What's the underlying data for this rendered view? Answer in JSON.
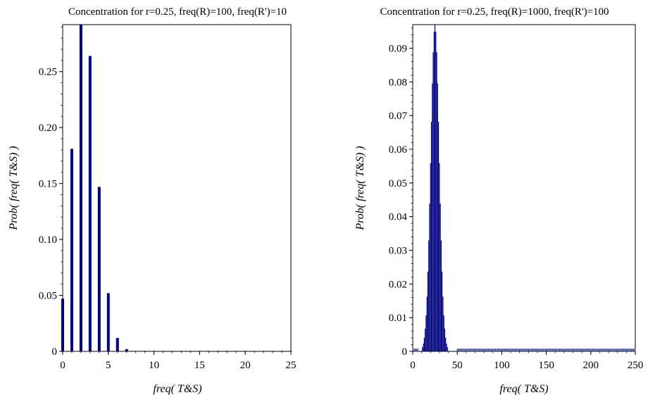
{
  "chart_data": [
    {
      "type": "bar",
      "title": "Concentration for r=0.25, freq(R)=100, freq(R')=10",
      "xlabel": "freq( T&S)",
      "ylabel": "Prob( freq( T&S) )",
      "xlim": [
        0,
        25
      ],
      "ylim": [
        0,
        0.292
      ],
      "xticks": [
        "0",
        "5",
        "10",
        "15",
        "20",
        "25"
      ],
      "xtick_values": [
        0,
        5,
        10,
        15,
        20,
        25
      ],
      "yticks": [
        "0",
        "0.05",
        "0.10",
        "0.15",
        "0.20",
        "0.25"
      ],
      "ytick_values": [
        0,
        0.05,
        0.1,
        0.15,
        0.2,
        0.25
      ],
      "x": [
        0,
        1,
        2,
        3,
        4,
        5,
        6,
        7,
        8,
        9,
        10,
        11,
        12,
        13,
        14,
        15,
        16,
        17,
        18,
        19,
        20,
        21,
        22,
        23,
        24,
        25
      ],
      "values": [
        0.047,
        0.181,
        0.292,
        0.264,
        0.147,
        0.052,
        0.012,
        0.002,
        0.0003,
        3e-05,
        0,
        0,
        0,
        0,
        0,
        0,
        0,
        0,
        0,
        0,
        0,
        0,
        0,
        0,
        0,
        0
      ],
      "grid": false,
      "bar_color": "#000080"
    },
    {
      "type": "bar",
      "title": "Concentration for r=0.25, freq(R)=1000, freq(R')=100",
      "xlabel": "freq( T&S)",
      "ylabel": "Prob( freq( T&S) )",
      "xlim": [
        0,
        250
      ],
      "ylim": [
        0,
        0.097
      ],
      "xticks": [
        "0",
        "50",
        "100",
        "150",
        "200",
        "250"
      ],
      "xtick_values": [
        0,
        50,
        100,
        150,
        200,
        250
      ],
      "yticks": [
        "0",
        "0.01",
        "0.02",
        "0.03",
        "0.04",
        "0.05",
        "0.06",
        "0.07",
        "0.08",
        "0.09"
      ],
      "ytick_values": [
        0,
        0.01,
        0.02,
        0.03,
        0.04,
        0.05,
        0.06,
        0.07,
        0.08,
        0.09
      ],
      "distribution": {
        "shape": "peak",
        "mode": 25,
        "peak_value": 0.097,
        "nonzero_range": [
          10,
          40
        ]
      },
      "grid": false,
      "bar_color": "#000080",
      "tail_color": "#4a5aa8"
    }
  ]
}
